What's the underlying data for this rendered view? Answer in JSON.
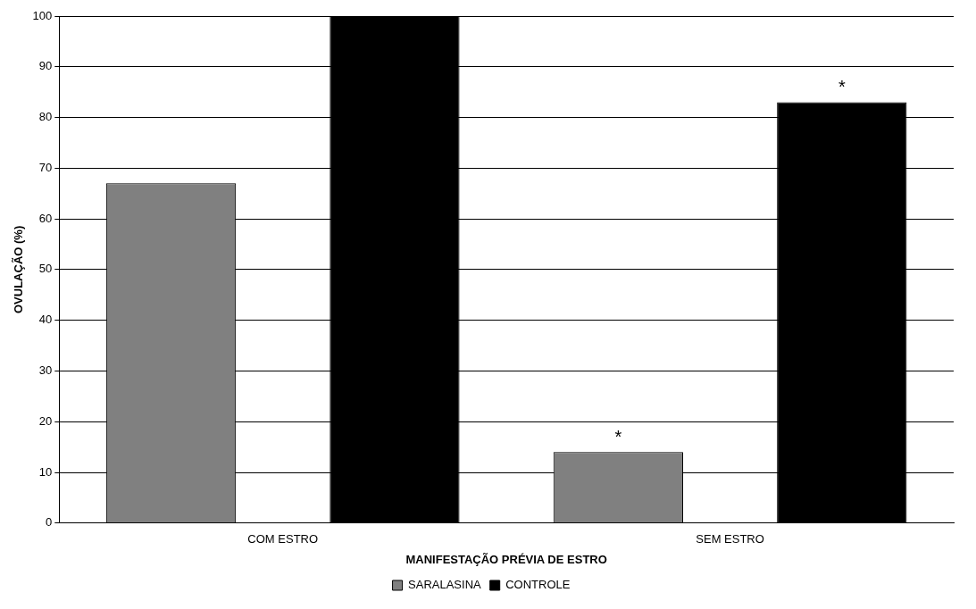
{
  "chart_data": {
    "type": "bar",
    "xlabel": "MANIFESTAÇÃO PRÉVIA DE ESTRO",
    "ylabel": "OVULAÇÃO (%)",
    "categories": [
      "COM ESTRO",
      "SEM ESTRO"
    ],
    "series": [
      {
        "name": "SARALASINA",
        "color": "#808080",
        "values": [
          67,
          14
        ],
        "value_labels": [
          null,
          "*"
        ]
      },
      {
        "name": "CONTROLE",
        "color": "#000000",
        "values": [
          100,
          83
        ],
        "value_labels": [
          null,
          "*"
        ]
      }
    ],
    "ylim": [
      0,
      100
    ],
    "yticks": [
      0,
      10,
      20,
      30,
      40,
      50,
      60,
      70,
      80,
      90,
      100
    ],
    "grid": "y",
    "legend": "bottom"
  }
}
